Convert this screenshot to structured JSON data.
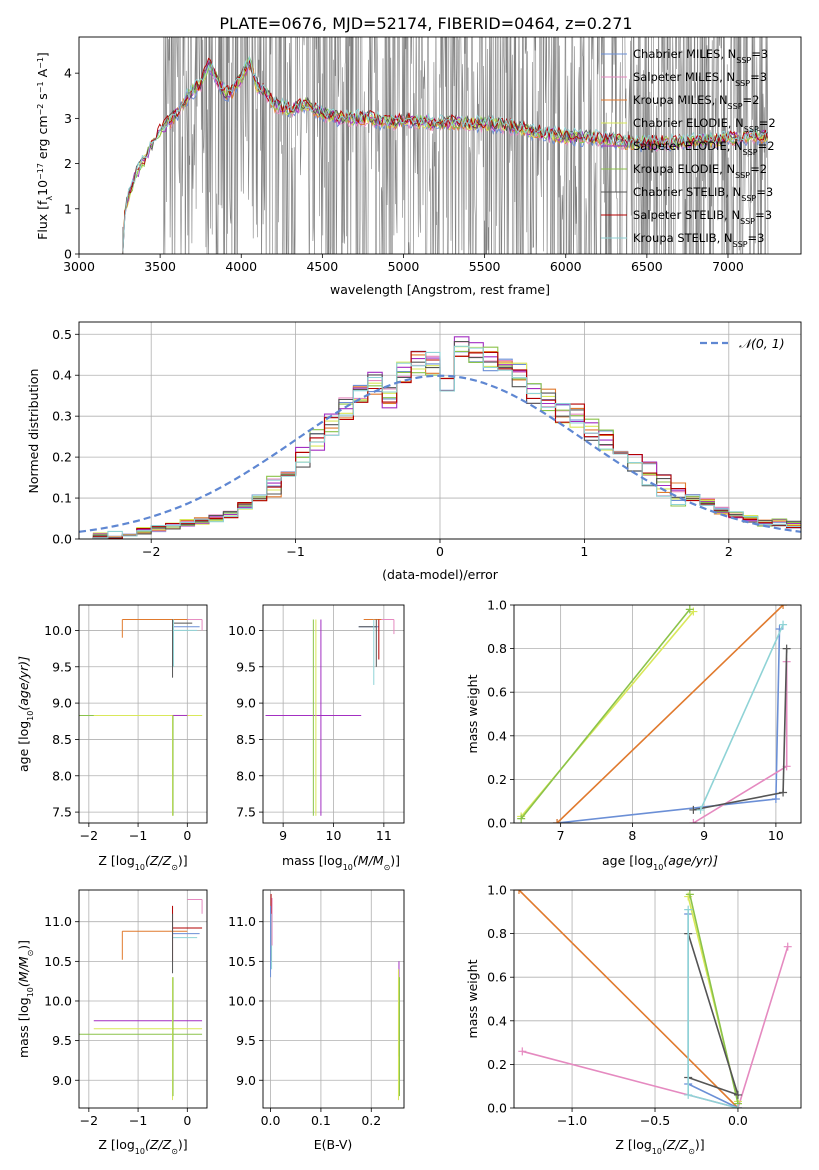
{
  "title": "PLATE=0676, MJD=52174, FIBERID=0464, z=0.271",
  "colors": {
    "chab_miles": "#6b8fd6",
    "salp_miles": "#e58ac0",
    "krou_miles": "#e07a2e",
    "chab_elodie": "#d9e85a",
    "salp_elodie": "#a32fc2",
    "krou_elodie": "#8bc34a",
    "chab_stelib": "#555555",
    "salp_stelib": "#b30000",
    "krou_stelib": "#8fd3d6",
    "spectrum": "#808080",
    "normal": "#5f87d2"
  },
  "chart_data": [
    {
      "id": "spectrum",
      "type": "line",
      "xlabel": "wavelength [Angstrom, rest frame]",
      "ylabel": "Flux [f",
      "ylabel_sub": "λ",
      "ylabel_rest": "10",
      "ylabel_exp": "−17",
      "ylabel_tail": " erg cm",
      "ylabel_exp2": "−2",
      "ylabel_tail2": " s",
      "ylabel_exp3": "−1",
      "ylabel_tail3": " A",
      "ylabel_exp4": "−1",
      "ylabel_close": "]",
      "xlim": [
        3000,
        7450
      ],
      "ylim": [
        0,
        4.8
      ],
      "xticks": [
        3000,
        3500,
        4000,
        4500,
        5000,
        5500,
        6000,
        6500,
        7000
      ],
      "yticks": [
        0,
        1,
        2,
        3,
        4
      ],
      "legend_position": "top-right",
      "legend": [
        {
          "label": "Chabrier MILES, N",
          "sub": "SSP",
          "tail": "=3",
          "color": "chab_miles"
        },
        {
          "label": "Salpeter MILES, N",
          "sub": "SSP",
          "tail": "=3",
          "color": "salp_miles"
        },
        {
          "label": "Kroupa MILES, N",
          "sub": "SSP",
          "tail": "=2",
          "color": "krou_miles"
        },
        {
          "label": "Chabrier ELODIE, N",
          "sub": "SSP",
          "tail": "=2",
          "color": "chab_elodie"
        },
        {
          "label": "Salpeter ELODIE, N",
          "sub": "SSP",
          "tail": "=2",
          "color": "salp_elodie"
        },
        {
          "label": "Kroupa ELODIE, N",
          "sub": "SSP",
          "tail": "=2",
          "color": "krou_elodie"
        },
        {
          "label": "Chabrier STELIB, N",
          "sub": "SSP",
          "tail": "=3",
          "color": "chab_stelib"
        },
        {
          "label": "Salpeter STELIB, N",
          "sub": "SSP",
          "tail": "=3",
          "color": "salp_stelib"
        },
        {
          "label": "Kroupa STELIB, N",
          "sub": "SSP",
          "tail": "=3",
          "color": "krou_stelib"
        }
      ],
      "model_continuum": {
        "x": [
          3270,
          3300,
          3350,
          3400,
          3450,
          3500,
          3550,
          3600,
          3650,
          3700,
          3750,
          3800,
          3850,
          3900,
          3950,
          4000,
          4050,
          4100,
          4150,
          4200,
          4300,
          4400,
          4500,
          4600,
          4700,
          4800,
          4900,
          5000,
          5200,
          5400,
          5600,
          5800,
          6000,
          6200,
          6400,
          6600,
          6800,
          7000,
          7200,
          7250
        ],
        "y": [
          0.6,
          1.2,
          1.75,
          2.05,
          2.4,
          2.7,
          2.9,
          3.1,
          3.4,
          3.6,
          3.75,
          4.2,
          3.85,
          3.55,
          3.6,
          3.9,
          4.25,
          3.7,
          3.6,
          3.3,
          3.2,
          3.3,
          3.1,
          3.0,
          3.0,
          3.0,
          2.9,
          2.95,
          2.9,
          2.9,
          2.85,
          2.7,
          2.6,
          2.55,
          2.45,
          2.45,
          2.5,
          2.55,
          2.6,
          2.6
        ]
      },
      "observed_range": [
        3520,
        7250
      ]
    },
    {
      "id": "residual-histogram",
      "type": "bar",
      "xlabel": "(data-model)/error",
      "ylabel": "Normed distribution",
      "xlim": [
        -2.5,
        2.5
      ],
      "ylim": [
        0,
        0.53
      ],
      "xticks": [
        -2,
        -1,
        0,
        1,
        2
      ],
      "xtick_labels": [
        "−2",
        "−1",
        "0",
        "1",
        "2"
      ],
      "yticks": [
        0,
        0.1,
        0.2,
        0.3,
        0.4,
        0.5
      ],
      "ytick_labels": [
        "0.0",
        "0.1",
        "0.2",
        "0.3",
        "0.4",
        "0.5"
      ],
      "legend_label": "𝒩(0, 1)",
      "legend_position": "top-right",
      "bin_width": 0.1,
      "bin_start": -2.5,
      "base_values": [
        0.005,
        0.008,
        0.01,
        0.015,
        0.02,
        0.025,
        0.03,
        0.04,
        0.045,
        0.05,
        0.06,
        0.08,
        0.1,
        0.13,
        0.17,
        0.2,
        0.24,
        0.28,
        0.32,
        0.36,
        0.38,
        0.35,
        0.41,
        0.43,
        0.43,
        0.38,
        0.47,
        0.46,
        0.44,
        0.42,
        0.4,
        0.35,
        0.34,
        0.31,
        0.3,
        0.27,
        0.24,
        0.22,
        0.19,
        0.16,
        0.13,
        0.11,
        0.1,
        0.09,
        0.07,
        0.06,
        0.05,
        0.04,
        0.04,
        0.035
      ]
    },
    {
      "id": "age-vs-Z",
      "type": "scatter",
      "xlabel": "Z [log",
      "xlabel_sub": "10",
      "xlabel_tail": "(Z/Z",
      "xlabel_sub2": "⊙",
      "xlabel_close": ")]",
      "ylabel": "age  [log",
      "ylabel_sub": "10",
      "ylabel_tail": "(age/yr)]",
      "xlim": [
        -2.2,
        0.4
      ],
      "ylim": [
        7.35,
        10.35
      ],
      "xticks": [
        -2,
        -1,
        0
      ],
      "xtick_labels": [
        "−2",
        "−1",
        "0"
      ],
      "yticks": [
        7.5,
        8.0,
        8.5,
        9.0,
        9.5,
        10.0
      ],
      "ytick_labels": [
        "7.5",
        "8.0",
        "8.5",
        "9.0",
        "9.5",
        "10.0"
      ]
    },
    {
      "id": "age-vs-mass",
      "type": "scatter",
      "xlabel": "mass [log",
      "xlabel_sub": "10",
      "xlabel_tail": "(M/M",
      "xlabel_sub2": "⊙",
      "xlabel_close": ")]",
      "xlim": [
        8.6,
        11.4
      ],
      "ylim": [
        7.35,
        10.35
      ],
      "xticks": [
        9,
        10,
        11
      ],
      "yticks": [
        7.5,
        8.0,
        8.5,
        9.0,
        9.5,
        10.0
      ],
      "ytick_labels": [
        "7.5",
        "8.0",
        "8.5",
        "9.0",
        "9.5",
        "10.0"
      ]
    },
    {
      "id": "massweight-vs-age",
      "type": "line",
      "xlabel": "age  [log",
      "xlabel_sub": "10",
      "xlabel_tail": "(age/yr)]",
      "ylabel": "mass weight",
      "xlim": [
        6.35,
        10.35
      ],
      "ylim": [
        0,
        1
      ],
      "xticks": [
        7,
        8,
        9,
        10
      ],
      "yticks": [
        0,
        0.2,
        0.4,
        0.6,
        0.8,
        1.0
      ],
      "ytick_labels": [
        "0.0",
        "0.2",
        "0.4",
        "0.6",
        "0.8",
        "1.0"
      ],
      "series": [
        {
          "color": "chab_miles",
          "x": [
            6.95,
            10.0,
            10.05
          ],
          "y": [
            0.0,
            0.11,
            0.89
          ]
        },
        {
          "color": "salp_miles",
          "x": [
            8.85,
            10.15,
            10.15
          ],
          "y": [
            0.0,
            0.26,
            0.74
          ]
        },
        {
          "color": "krou_miles",
          "x": [
            6.95,
            10.1
          ],
          "y": [
            0.0,
            1.0
          ]
        },
        {
          "color": "chab_elodie",
          "x": [
            6.45,
            8.85
          ],
          "y": [
            0.03,
            0.97
          ]
        },
        {
          "color": "krou_elodie",
          "x": [
            6.45,
            8.8
          ],
          "y": [
            0.02,
            0.98
          ]
        },
        {
          "color": "chab_stelib",
          "x": [
            8.85,
            10.1,
            10.15
          ],
          "y": [
            0.06,
            0.14,
            0.8
          ]
        },
        {
          "color": "krou_stelib",
          "x": [
            8.95,
            10.1
          ],
          "y": [
            0.06,
            0.91
          ]
        }
      ]
    },
    {
      "id": "mass-vs-Z",
      "type": "scatter",
      "xlabel": "Z [log",
      "xlabel_sub": "10",
      "xlabel_tail": "(Z/Z",
      "xlabel_sub2": "⊙",
      "xlabel_close": ")]",
      "ylabel": "mass [log",
      "ylabel_sub": "10",
      "ylabel_tail": "(M/M",
      "ylabel_sub2": "⊙",
      "ylabel_close": ")]",
      "xlim": [
        -2.2,
        0.4
      ],
      "ylim": [
        8.65,
        11.4
      ],
      "xticks": [
        -2,
        -1,
        0
      ],
      "xtick_labels": [
        "−2",
        "−1",
        "0"
      ],
      "yticks": [
        9.0,
        9.5,
        10.0,
        10.5,
        11.0
      ],
      "ytick_labels": [
        "9.0",
        "9.5",
        "10.0",
        "10.5",
        "11.0"
      ]
    },
    {
      "id": "mass-vs-EBV",
      "type": "scatter",
      "xlabel": "E(B-V)",
      "xlim": [
        -0.015,
        0.265
      ],
      "ylim": [
        8.65,
        11.4
      ],
      "xticks": [
        0.0,
        0.1,
        0.2
      ],
      "xtick_labels": [
        "0.0",
        "0.1",
        "0.2"
      ],
      "yticks": [
        9.0,
        9.5,
        10.0,
        10.5,
        11.0
      ],
      "ytick_labels": [
        "9.0",
        "9.5",
        "10.0",
        "10.5",
        "11.0"
      ]
    },
    {
      "id": "massweight-vs-Z",
      "type": "line",
      "xlabel": "Z [log",
      "xlabel_sub": "10",
      "xlabel_tail": "(Z/Z",
      "xlabel_sub2": "⊙",
      "xlabel_close": ")]",
      "ylabel": "mass weight",
      "xlim": [
        -1.35,
        0.38
      ],
      "ylim": [
        0,
        1
      ],
      "xticks": [
        -1.0,
        -0.5,
        0.0
      ],
      "xtick_labels": [
        "−1.0",
        "−0.5",
        "0.0"
      ],
      "yticks": [
        0,
        0.2,
        0.4,
        0.6,
        0.8,
        1.0
      ],
      "ytick_labels": [
        "0.0",
        "0.2",
        "0.4",
        "0.6",
        "0.8",
        "1.0"
      ],
      "series": [
        {
          "color": "salp_miles",
          "x": [
            -1.3,
            0.0,
            0.3
          ],
          "y": [
            0.26,
            0.0,
            0.74
          ]
        },
        {
          "color": "krou_miles",
          "x": [
            -1.32,
            0.0
          ],
          "y": [
            1.0,
            0.0
          ]
        },
        {
          "color": "chab_miles",
          "x": [
            -0.3,
            -0.3,
            0.0
          ],
          "y": [
            0.89,
            0.11,
            0.0
          ]
        },
        {
          "color": "chab_elodie",
          "x": [
            -0.3,
            0.0
          ],
          "y": [
            0.97,
            0.03
          ]
        },
        {
          "color": "krou_elodie",
          "x": [
            -0.29,
            0.0
          ],
          "y": [
            0.98,
            0.02
          ]
        },
        {
          "color": "chab_stelib",
          "x": [
            -0.3,
            0.0,
            -0.3
          ],
          "y": [
            0.14,
            0.06,
            0.8
          ]
        },
        {
          "color": "krou_stelib",
          "x": [
            -0.3,
            -0.3,
            0.0
          ],
          "y": [
            0.91,
            0.06,
            0.0
          ]
        }
      ]
    }
  ]
}
